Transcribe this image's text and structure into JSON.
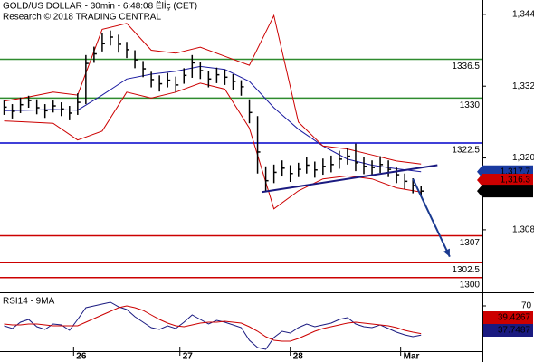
{
  "chart_data": [
    {
      "type": "ohlc",
      "title": "GOLD/US DOLLAR - 30min - 6:48:08 Ëlİç (CET)",
      "subtitle": "Research © 2018 TRADING CENTRAL",
      "xlim": [
        -0.5,
        58.5
      ],
      "xticks": [
        {
          "value": 8.5,
          "label": "26"
        },
        {
          "value": 21.5,
          "label": "27"
        },
        {
          "value": 35,
          "label": "28"
        },
        {
          "value": 48.5,
          "label": "Mar"
        }
      ],
      "ylim": [
        1297.7,
        1346.4
      ],
      "yticks": [
        {
          "value": 1308,
          "label": "1,308"
        },
        {
          "value": 1320,
          "label": "1,320"
        },
        {
          "value": 1332,
          "label": "1,332"
        },
        {
          "value": 1344,
          "label": "1,344"
        }
      ],
      "color": "#000000",
      "close": [
        1328.5,
        1327.8,
        1328.9,
        1329.6,
        1328.4,
        1327.9,
        1328.7,
        1328.2,
        1327.5,
        1329.3,
        1335.8,
        1337.4,
        1339.1,
        1340.2,
        1339.0,
        1338.1,
        1336.4,
        1334.9,
        1333.1,
        1332.4,
        1333.0,
        1332.2,
        1333.8,
        1335.9,
        1334.6,
        1333.2,
        1333.9,
        1333.5,
        1332.8,
        1331.9,
        1327.6,
        1321.0,
        1316.2,
        1317.6,
        1318.3,
        1317.4,
        1318.1,
        1318.8,
        1318.0,
        1318.6,
        1318.9,
        1319.8,
        1320.3,
        1319.2,
        1318.6,
        1318.4,
        1318.9,
        1318.1,
        1317.2,
        1316.1,
        1315.4,
        1314.46
      ],
      "high": [
        1329.6,
        1329.0,
        1330.1,
        1330.4,
        1329.8,
        1329.0,
        1329.6,
        1329.3,
        1328.7,
        1330.8,
        1337.2,
        1338.6,
        1340.9,
        1341.3,
        1340.6,
        1339.4,
        1338.0,
        1336.2,
        1334.4,
        1333.8,
        1334.2,
        1333.6,
        1335.0,
        1337.2,
        1336.0,
        1334.5,
        1335.1,
        1334.8,
        1334.0,
        1333.0,
        1329.8,
        1327.0,
        1318.6,
        1318.9,
        1319.6,
        1318.8,
        1319.2,
        1320.2,
        1319.4,
        1319.9,
        1320.4,
        1321.2,
        1321.6,
        1322.4,
        1320.2,
        1319.6,
        1320.3,
        1319.6,
        1318.4,
        1317.4,
        1316.6,
        1315.3
      ],
      "low": [
        1327.2,
        1326.6,
        1327.5,
        1328.4,
        1327.3,
        1326.7,
        1327.6,
        1327.0,
        1326.3,
        1327.2,
        1329.0,
        1335.9,
        1337.8,
        1338.8,
        1337.6,
        1336.7,
        1335.0,
        1333.5,
        1331.8,
        1331.1,
        1331.8,
        1331.0,
        1332.4,
        1333.4,
        1333.2,
        1331.8,
        1332.5,
        1332.2,
        1331.4,
        1330.4,
        1325.8,
        1317.4,
        1314.4,
        1315.8,
        1316.9,
        1316.0,
        1316.8,
        1317.4,
        1316.7,
        1317.2,
        1317.6,
        1318.2,
        1318.9,
        1317.8,
        1317.3,
        1317.1,
        1317.5,
        1316.8,
        1315.8,
        1314.8,
        1314.1,
        1313.8
      ],
      "lines": [
        {
          "color": "#1a1aa0",
          "x": [
            0,
            3,
            6,
            9,
            12,
            15,
            18,
            21,
            24,
            27,
            30,
            33,
            36,
            39,
            42,
            45,
            48,
            51
          ],
          "values": [
            1327.9,
            1328.0,
            1328.1,
            1328.0,
            1330.5,
            1333.2,
            1334.0,
            1334.5,
            1335.3,
            1334.8,
            1332.8,
            1328.4,
            1324.8,
            1322.0,
            1319.8,
            1318.8,
            1318.2,
            1317.7
          ]
        },
        {
          "color": "#cc0000",
          "x": [
            0,
            3,
            6,
            9,
            12,
            15,
            18,
            21,
            24,
            27,
            30,
            33,
            36,
            39,
            42,
            45,
            48,
            51
          ],
          "values": [
            1329.5,
            1330.2,
            1331.0,
            1330.5,
            1341.5,
            1342.5,
            1338.0,
            1337.5,
            1338.5,
            1337.0,
            1335.5,
            1343.8,
            1326.0,
            1322.0,
            1321.5,
            1320.5,
            1319.5,
            1319.0
          ]
        },
        {
          "color": "#cc0000",
          "x": [
            0,
            3,
            6,
            9,
            12,
            15,
            18,
            21,
            24,
            27,
            30,
            33,
            36,
            39,
            42,
            45,
            48,
            51
          ],
          "values": [
            1326.2,
            1326.0,
            1325.8,
            1323.0,
            1324.5,
            1331.0,
            1330.0,
            1331.0,
            1332.5,
            1331.5,
            1325.0,
            1311.5,
            1314.5,
            1316.5,
            1317.0,
            1316.5,
            1315.0,
            1314.3
          ]
        }
      ],
      "levels": [
        {
          "value": 1336.5,
          "color": "#2e8b2e"
        },
        {
          "value": 1330,
          "color": "#2e8b2e"
        },
        {
          "value": 1322.5,
          "color": "#0000cc"
        },
        {
          "value": 1307,
          "color": "#cc0000"
        },
        {
          "value": 1302.5,
          "color": "#cc0000"
        },
        {
          "value": 1300,
          "color": "#cc0000"
        }
      ],
      "trendline": {
        "color": "#1a1a80",
        "x": [
          31.5,
          53
        ],
        "values": [
          1314.3,
          1318.8
        ]
      },
      "arrow": {
        "color": "#1a3a90",
        "x": [
          50,
          54.5
        ],
        "values": [
          1316.5,
          1303.5
        ]
      },
      "price_tags": [
        {
          "value": 1317.7,
          "label": "1,317.7",
          "color": "#1a3aa0"
        },
        {
          "value": 1316.3,
          "label": "1,316.3",
          "color": "#cc0000"
        },
        {
          "value": 1314.46,
          "label": "1,314.46",
          "color": "#000000"
        }
      ]
    },
    {
      "type": "line",
      "title": "RSI14 - 9MA",
      "xlim": [
        -0.5,
        58.5
      ],
      "ylim": [
        20,
        80
      ],
      "yticks": [
        70
      ],
      "series": [
        {
          "color": "#1a1a80",
          "values": [
            48,
            45,
            52,
            55,
            47,
            44,
            50,
            49,
            43,
            55,
            68,
            70,
            72,
            74,
            69,
            66,
            58,
            52,
            46,
            44,
            48,
            45,
            52,
            60,
            55,
            50,
            54,
            52,
            49,
            46,
            32,
            24,
            22,
            35,
            42,
            40,
            46,
            50,
            47,
            49,
            51,
            55,
            57,
            50,
            47,
            46,
            49,
            45,
            41,
            38,
            36,
            37.7487
          ]
        },
        {
          "color": "#cc0000",
          "values": [
            50,
            49,
            49,
            50,
            50,
            49,
            48,
            48,
            48,
            48,
            52,
            56,
            60,
            64,
            68,
            70,
            68,
            65,
            60,
            55,
            51,
            48,
            47,
            49,
            51,
            52,
            52,
            53,
            52,
            51,
            47,
            42,
            36,
            32,
            31,
            31,
            34,
            38,
            42,
            45,
            47,
            49,
            51,
            52,
            51,
            50,
            49,
            48,
            46,
            43,
            41,
            39.4267
          ]
        }
      ]
    }
  ]
}
